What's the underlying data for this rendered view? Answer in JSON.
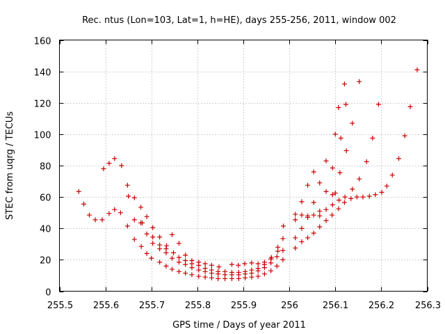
{
  "chart_data": {
    "type": "scatter",
    "title": "Rec. ntus (Lon=103, Lat=1, h=HE), days 255-256, 2011, window 002",
    "xlabel": "GPS time / Days of year 2011",
    "ylabel": "STEC from uqrg / TECUs",
    "xlim": [
      255.5,
      256.3
    ],
    "ylim": [
      0,
      160
    ],
    "xticks": [
      255.5,
      255.6,
      255.7,
      255.8,
      255.9,
      256.0,
      256.1,
      256.2,
      256.3
    ],
    "xtick_labels": [
      "255.5",
      "255.6",
      "255.7",
      "255.8",
      "255.9",
      "256",
      "256.1",
      "256.2",
      "256.3"
    ],
    "yticks": [
      0,
      20,
      40,
      60,
      80,
      100,
      120,
      140,
      160
    ],
    "ytick_labels": [
      "0",
      "20",
      "40",
      "60",
      "80",
      "100",
      "120",
      "140",
      "160"
    ],
    "grid": true,
    "marker": "+",
    "colors": {
      "marker": "#cc0000",
      "grid": "#a0a0a0",
      "axes": "#000000"
    },
    "points": [
      [
        255.542,
        63.5
      ],
      [
        255.553,
        55.5
      ],
      [
        255.565,
        48.5
      ],
      [
        255.578,
        45.5
      ],
      [
        255.593,
        45.5
      ],
      [
        255.596,
        78.0
      ],
      [
        255.608,
        81.5
      ],
      [
        255.62,
        84.5
      ],
      [
        255.635,
        80.0
      ],
      [
        255.648,
        67.5
      ],
      [
        255.65,
        60.5
      ],
      [
        255.663,
        59.5
      ],
      [
        255.677,
        53.5
      ],
      [
        255.69,
        47.5
      ],
      [
        255.703,
        40.5
      ],
      [
        255.608,
        49.5
      ],
      [
        255.62,
        52.0
      ],
      [
        255.633,
        50.0
      ],
      [
        255.648,
        41.5
      ],
      [
        255.663,
        33.0
      ],
      [
        255.678,
        28.5
      ],
      [
        255.69,
        24.0
      ],
      [
        255.7,
        21.0
      ],
      [
        255.718,
        18.5
      ],
      [
        255.732,
        16.0
      ],
      [
        255.745,
        14.0
      ],
      [
        255.76,
        12.5
      ],
      [
        255.774,
        11.5
      ],
      [
        255.788,
        10.5
      ],
      [
        255.803,
        9.5
      ],
      [
        255.817,
        9.0
      ],
      [
        255.831,
        8.5
      ],
      [
        255.845,
        8.0
      ],
      [
        255.86,
        8.0
      ],
      [
        255.875,
        8.0
      ],
      [
        255.89,
        8.0
      ],
      [
        255.904,
        8.5
      ],
      [
        255.918,
        9.0
      ],
      [
        255.932,
        9.5
      ],
      [
        255.946,
        11.0
      ],
      [
        255.96,
        13.0
      ],
      [
        255.973,
        16.0
      ],
      [
        255.986,
        20.0
      ],
      [
        256.013,
        27.5
      ],
      [
        256.027,
        31.5
      ],
      [
        256.04,
        34.0
      ],
      [
        256.053,
        37.0
      ],
      [
        256.066,
        41.0
      ],
      [
        256.08,
        45.0
      ],
      [
        256.093,
        48.5
      ],
      [
        256.107,
        52.5
      ],
      [
        256.12,
        56.5
      ],
      [
        256.134,
        59.0
      ],
      [
        256.147,
        60.0
      ],
      [
        256.16,
        60.0
      ],
      [
        256.174,
        60.5
      ],
      [
        256.187,
        61.5
      ],
      [
        256.201,
        63.0
      ],
      [
        256.212,
        67.0
      ],
      [
        256.224,
        74.0
      ],
      [
        256.238,
        84.5
      ],
      [
        256.251,
        99.0
      ],
      [
        256.263,
        117.5
      ],
      [
        256.278,
        141.0
      ],
      [
        255.663,
        45.5
      ],
      [
        255.677,
        43.5
      ],
      [
        255.69,
        36.5
      ],
      [
        255.703,
        30.5
      ],
      [
        255.718,
        27.0
      ],
      [
        255.732,
        24.5
      ],
      [
        255.745,
        21.0
      ],
      [
        255.76,
        18.5
      ],
      [
        255.774,
        17.0
      ],
      [
        255.788,
        15.0
      ],
      [
        255.803,
        13.5
      ],
      [
        255.817,
        12.5
      ],
      [
        255.831,
        11.5
      ],
      [
        255.845,
        11.0
      ],
      [
        255.86,
        10.5
      ],
      [
        255.875,
        10.5
      ],
      [
        255.89,
        10.5
      ],
      [
        255.904,
        11.0
      ],
      [
        255.918,
        11.5
      ],
      [
        255.932,
        13.0
      ],
      [
        255.946,
        15.0
      ],
      [
        255.96,
        18.0
      ],
      [
        255.973,
        22.0
      ],
      [
        255.986,
        26.0
      ],
      [
        255.68,
        43.5
      ],
      [
        255.703,
        34.5
      ],
      [
        255.718,
        29.5
      ],
      [
        255.732,
        27.0
      ],
      [
        255.748,
        24.5
      ],
      [
        255.76,
        21.5
      ],
      [
        255.774,
        19.5
      ],
      [
        255.788,
        17.5
      ],
      [
        255.803,
        16.5
      ],
      [
        255.817,
        14.5
      ],
      [
        255.831,
        13.5
      ],
      [
        255.845,
        12.5
      ],
      [
        255.86,
        12.5
      ],
      [
        255.875,
        12.0
      ],
      [
        255.89,
        12.0
      ],
      [
        255.904,
        12.5
      ],
      [
        255.918,
        13.5
      ],
      [
        255.932,
        14.5
      ],
      [
        255.946,
        17.0
      ],
      [
        255.96,
        20.5
      ],
      [
        255.975,
        25.5
      ],
      [
        255.986,
        33.5
      ],
      [
        255.718,
        34.5
      ],
      [
        255.733,
        29.0
      ],
      [
        255.745,
        36.0
      ],
      [
        255.76,
        30.5
      ],
      [
        255.774,
        23.0
      ],
      [
        255.788,
        19.5
      ],
      [
        255.803,
        18.5
      ],
      [
        255.817,
        17.5
      ],
      [
        255.831,
        16.5
      ],
      [
        255.847,
        15.5
      ],
      [
        255.875,
        17.0
      ],
      [
        255.889,
        16.5
      ],
      [
        255.903,
        17.5
      ],
      [
        255.918,
        18.0
      ],
      [
        255.932,
        17.5
      ],
      [
        255.946,
        18.5
      ],
      [
        255.961,
        21.5
      ],
      [
        255.975,
        28.0
      ],
      [
        255.987,
        41.5
      ],
      [
        256.013,
        49.0
      ],
      [
        256.027,
        57.0
      ],
      [
        256.04,
        67.5
      ],
      [
        256.053,
        76.0
      ],
      [
        256.066,
        69.0
      ],
      [
        256.08,
        83.0
      ],
      [
        256.094,
        78.5
      ],
      [
        256.1,
        100.0
      ],
      [
        256.107,
        117.0
      ],
      [
        256.12,
        132.0
      ],
      [
        256.123,
        119.0
      ],
      [
        256.124,
        89.5
      ],
      [
        256.137,
        107.0
      ],
      [
        256.152,
        133.5
      ],
      [
        256.168,
        82.5
      ],
      [
        256.181,
        97.5
      ],
      [
        256.194,
        119.0
      ],
      [
        256.013,
        45.5
      ],
      [
        256.027,
        48.5
      ],
      [
        256.04,
        48.0
      ],
      [
        256.053,
        48.5
      ],
      [
        256.066,
        51.0
      ],
      [
        256.08,
        52.0
      ],
      [
        256.094,
        55.0
      ],
      [
        256.108,
        58.0
      ],
      [
        256.121,
        60.0
      ],
      [
        256.137,
        65.0
      ],
      [
        256.152,
        71.5
      ],
      [
        256.1,
        62.5
      ],
      [
        256.112,
        97.5
      ],
      [
        256.11,
        75.5
      ],
      [
        256.013,
        34.0
      ],
      [
        256.027,
        40.0
      ],
      [
        256.04,
        47.0
      ],
      [
        256.053,
        56.5
      ],
      [
        256.066,
        48.0
      ],
      [
        256.08,
        63.5
      ],
      [
        256.094,
        61.5
      ]
    ]
  }
}
